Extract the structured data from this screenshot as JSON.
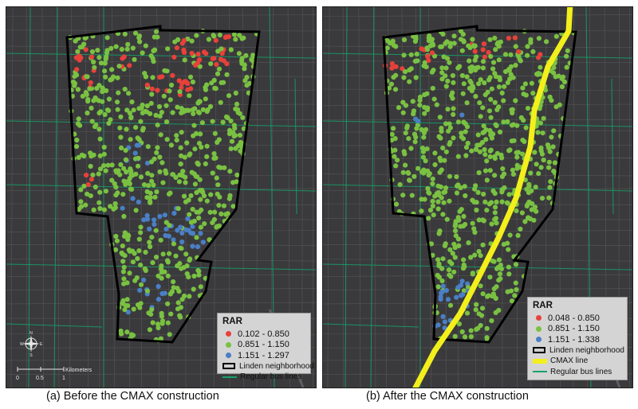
{
  "panels": [
    {
      "caption": "(a) Before the CMAX construction",
      "legend": {
        "title": "RAR",
        "classes": [
          {
            "label": "0.102 - 0.850",
            "color": "#e8413a"
          },
          {
            "label": "0.851 - 1.150",
            "color": "#7ac142"
          },
          {
            "label": "1.151 - 1.297",
            "color": "#4a7fc6"
          }
        ],
        "neighborhood": "Linden neighborhood",
        "bus": "Regular bus lines"
      },
      "scale": {
        "unit": "Kilometers",
        "ticks": [
          "0",
          "0.5",
          "1"
        ]
      },
      "compass": {
        "n": "N",
        "s": "S",
        "e": "E",
        "w": "W"
      }
    },
    {
      "caption": "(b) After the CMAX construction",
      "legend": {
        "title": "RAR",
        "classes": [
          {
            "label": "0.048 - 0.850",
            "color": "#e8413a"
          },
          {
            "label": "0.851 - 1.150",
            "color": "#7ac142"
          },
          {
            "label": "1.151 - 1.338",
            "color": "#4a7fc6"
          }
        ],
        "neighborhood": "Linden neighborhood",
        "cmax": "CMAX line",
        "bus": "Regular bus lines"
      }
    }
  ],
  "colors": {
    "map_background": "#3a3a3c",
    "neighborhood_outline": "#000000",
    "cmax_line": "#f2ef1c",
    "bus_lines": "#15a36b",
    "streets": "#565658"
  },
  "icons": [
    "compass-rose-icon",
    "scale-bar"
  ]
}
